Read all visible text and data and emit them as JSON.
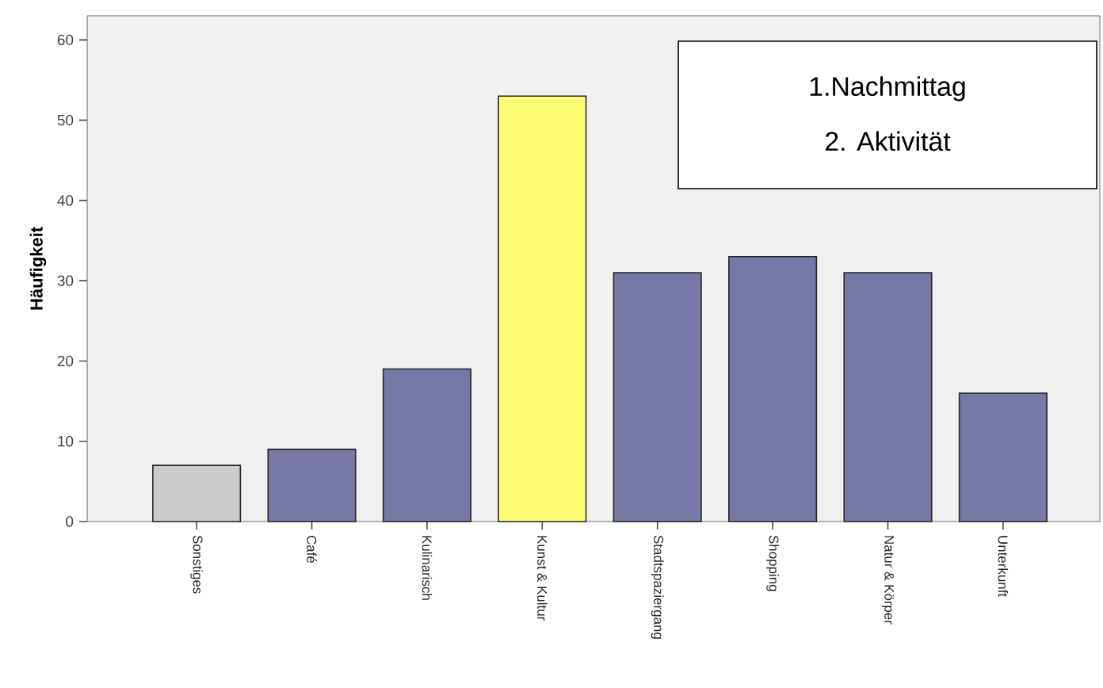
{
  "chart_data": {
    "type": "bar",
    "ylabel": "Häufigkeit",
    "categories": [
      "Sonstiges",
      "Café",
      "Kulinarisch",
      "Kunst & Kultur",
      "Stadtspaziergang",
      "Shopping",
      "Natur & Körper",
      "Unterkunft"
    ],
    "values": [
      7,
      9,
      19,
      53,
      31,
      33,
      31,
      16
    ],
    "colors": [
      "#cccccc",
      "#7878a6",
      "#7878a6",
      "#ffff77",
      "#7878a6",
      "#7878a6",
      "#7878a6",
      "#7878a6"
    ],
    "ylim": [
      0,
      63
    ],
    "yticks": [
      0,
      10,
      20,
      30,
      40,
      50,
      60
    ],
    "annotations": [
      "1.Nachmittag",
      "2. Aktivität"
    ]
  }
}
